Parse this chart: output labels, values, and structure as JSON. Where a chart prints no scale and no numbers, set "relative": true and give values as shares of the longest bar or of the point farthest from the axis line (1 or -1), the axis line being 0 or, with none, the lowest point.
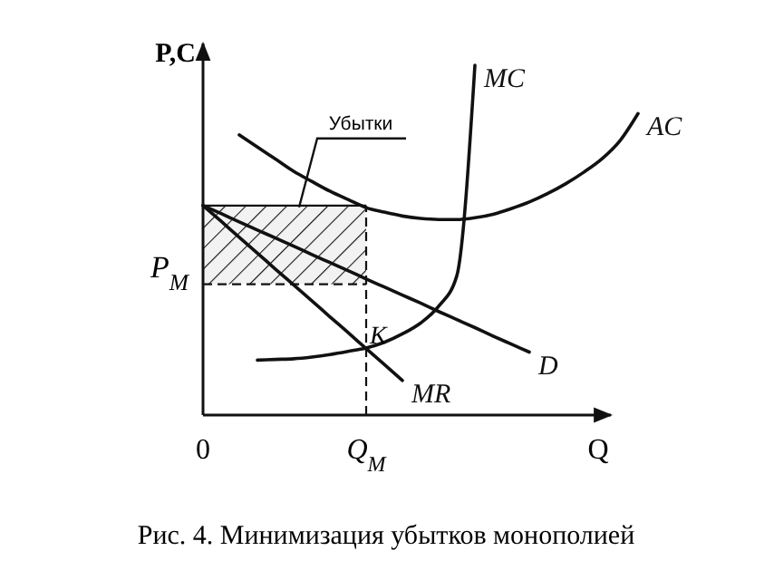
{
  "chart_data": {
    "type": "line",
    "relative": true,
    "xlabel": "Q",
    "ylabel": "P,C",
    "categories": [
      "0",
      null,
      null,
      null,
      null,
      null,
      null,
      null,
      null,
      "Q$_{M}$",
      null,
      null,
      null,
      null,
      null,
      null,
      null,
      null,
      null,
      null,
      null,
      null,
      null,
      null,
      null
    ],
    "series": [
      {
        "name": "MC",
        "color": "#111111",
        "values": [
          null,
          null,
          null,
          0.157,
          0.159,
          0.161,
          0.166,
          0.173,
          0.182,
          0.192,
          0.208,
          0.232,
          0.263,
          0.311,
          0.398,
          1.0,
          null,
          null,
          null,
          null,
          null,
          null,
          null,
          null,
          null
        ]
      },
      {
        "name": "AC",
        "color": "#111111",
        "values": [
          null,
          null,
          0.801,
          0.766,
          0.732,
          0.697,
          0.668,
          0.64,
          0.616,
          0.593,
          0.58,
          0.569,
          0.562,
          0.559,
          0.559,
          0.564,
          0.574,
          0.59,
          0.609,
          0.633,
          0.661,
          0.694,
          0.732,
          0.784,
          0.862
        ]
      },
      {
        "name": "D",
        "color": "#111111",
        "values": [
          0.599,
          0.576,
          0.552,
          0.529,
          0.506,
          0.483,
          0.459,
          0.436,
          0.413,
          0.389,
          0.366,
          0.343,
          0.32,
          0.296,
          0.273,
          0.25,
          0.226,
          0.203,
          0.18,
          null,
          null,
          null,
          null,
          null,
          null
        ]
      },
      {
        "name": "MR",
        "color": "#111111",
        "values": [
          0.599,
          0.554,
          0.508,
          0.463,
          0.417,
          0.372,
          0.327,
          0.281,
          0.236,
          0.19,
          0.145,
          0.099,
          null,
          null,
          null,
          null,
          null,
          null,
          null,
          null,
          null,
          null,
          null,
          null,
          null
        ]
      }
    ],
    "bands": [
      {
        "axis": "y",
        "from": 0.374,
        "to": 0.599,
        "label": "Убытки"
      }
    ],
    "ref_lines": [
      {
        "axis": "y",
        "value": 0.374,
        "label": "P$_{M}$",
        "line_style": "dashed"
      },
      {
        "axis": "x",
        "value": "Q$_{M}$",
        "line_style": "dashed"
      }
    ],
    "annotations": [
      {
        "text": "K",
        "x": "Q$_{M}$",
        "y": 0.19
      },
      "Рис. 4. Минимизация убытков монополией"
    ]
  }
}
